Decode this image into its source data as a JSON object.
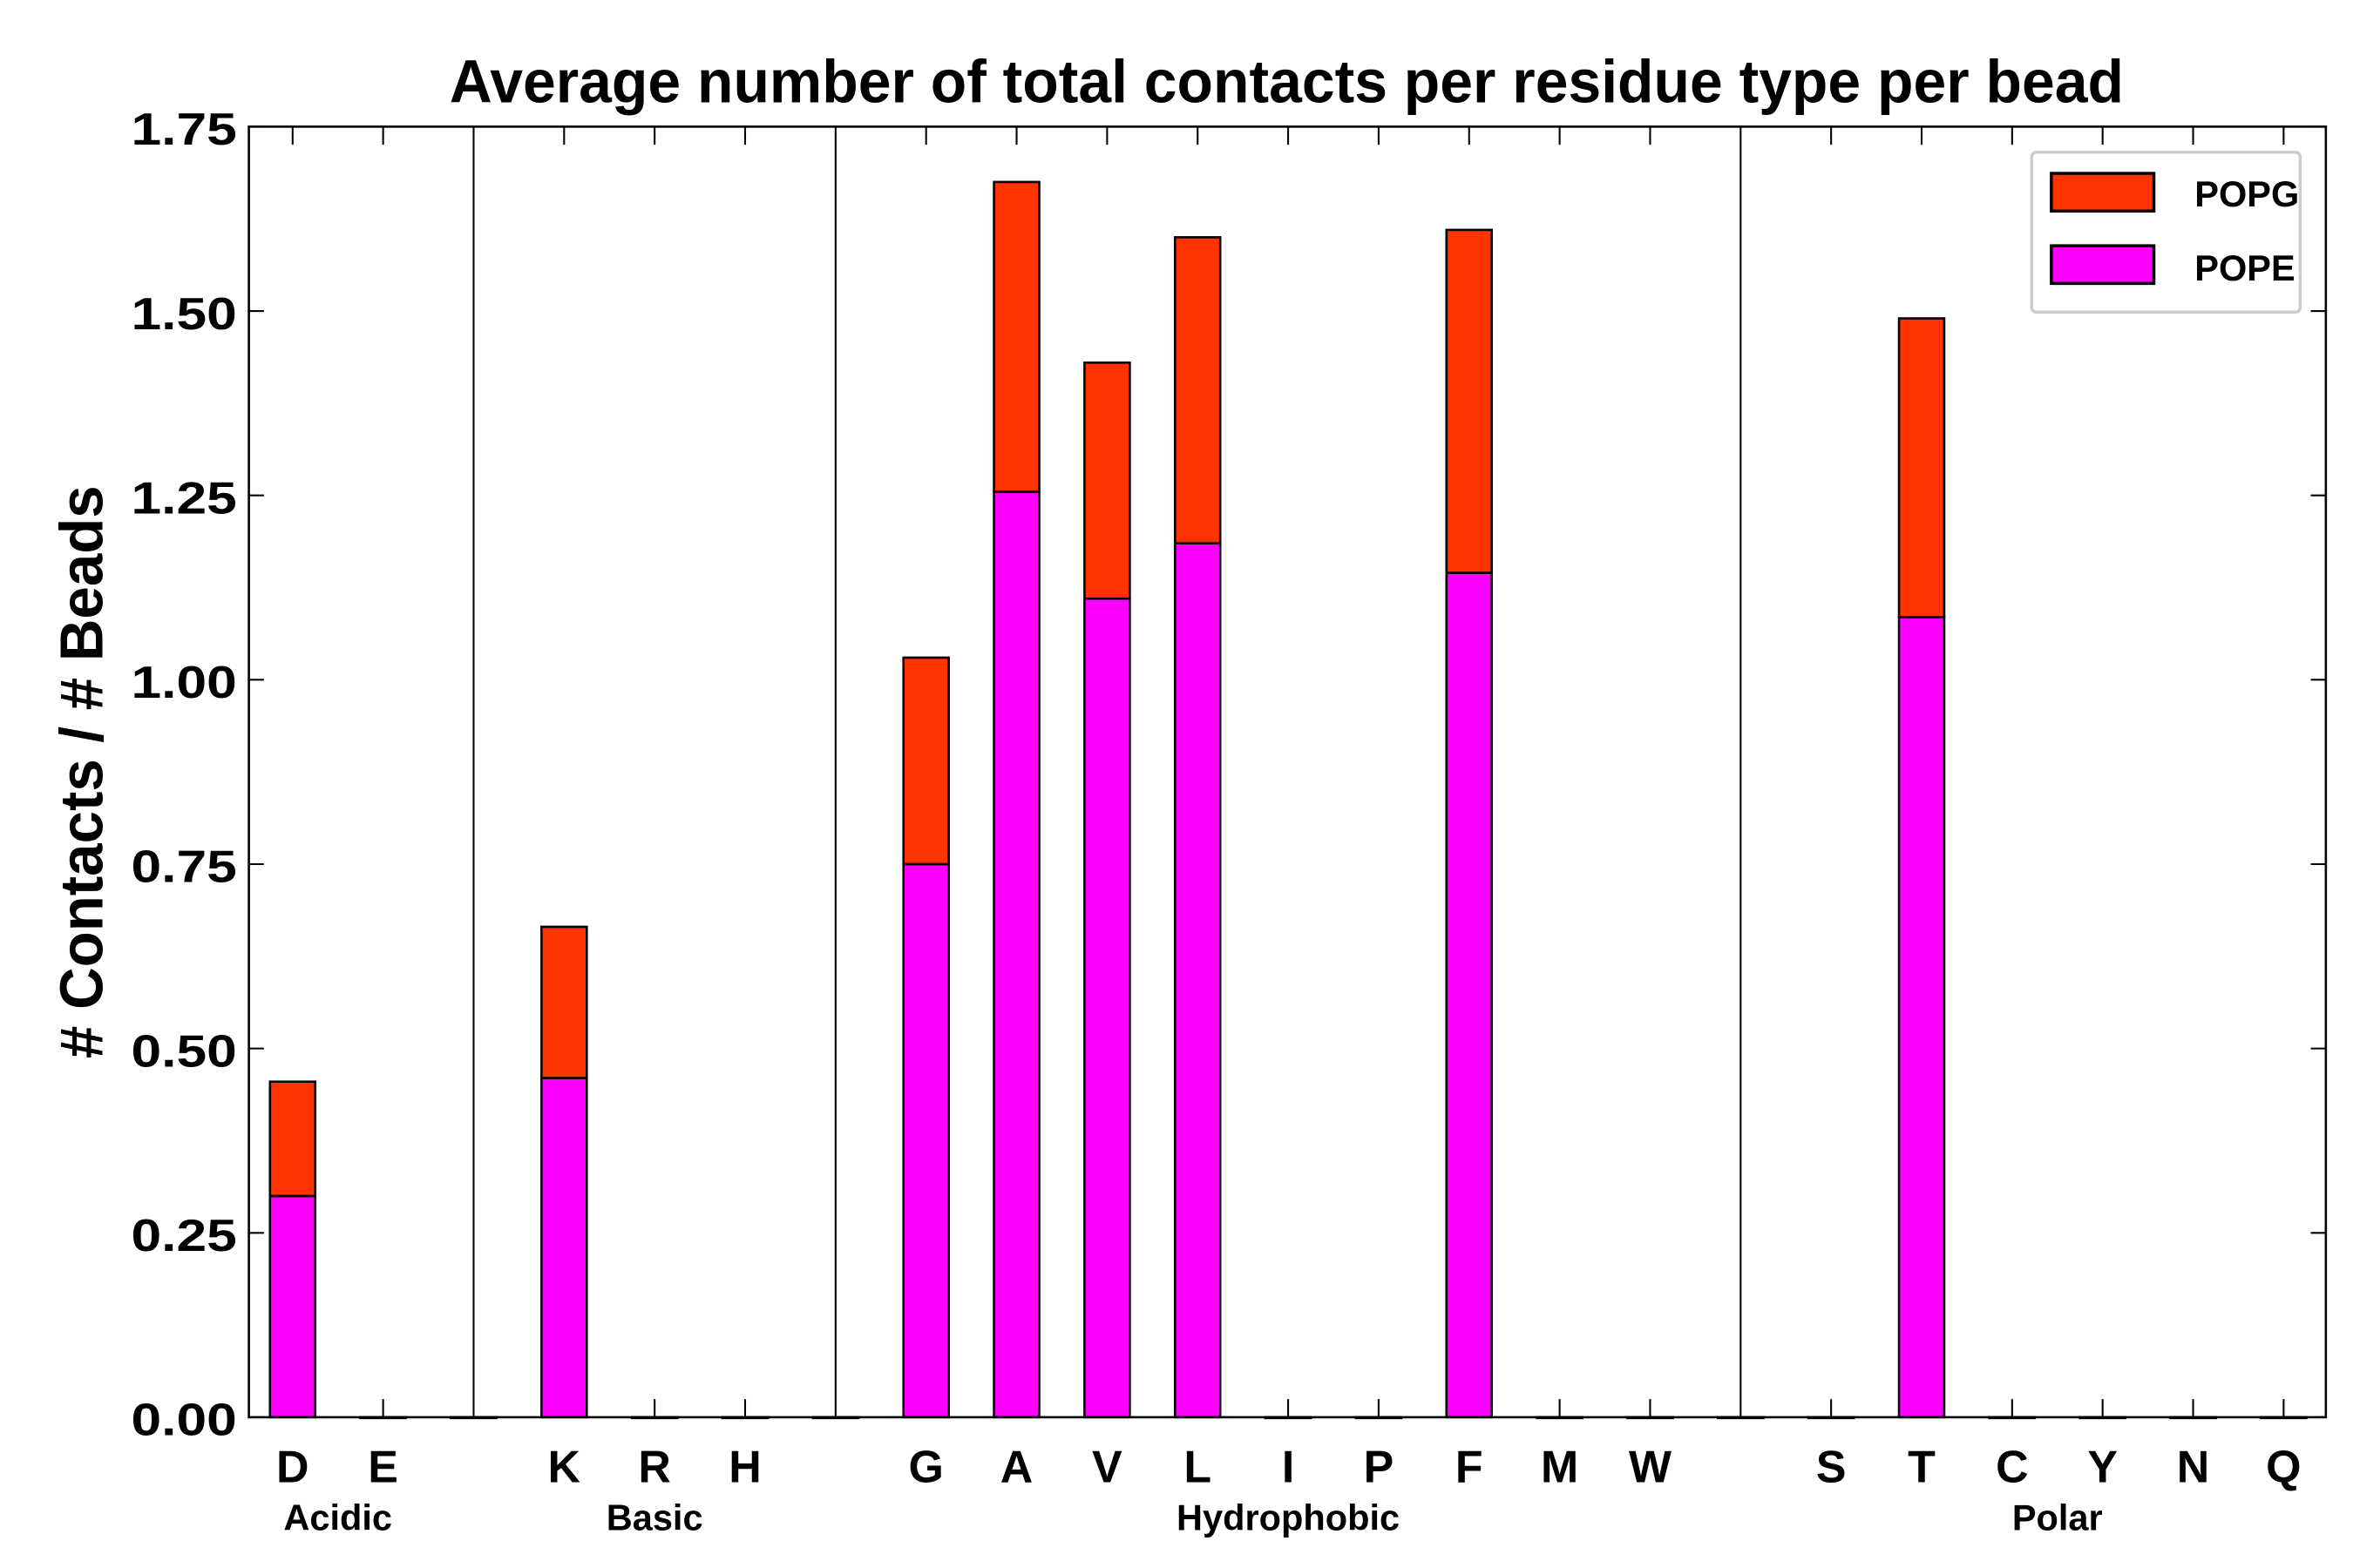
{
  "chart_data": {
    "type": "bar",
    "stacked": true,
    "title": "Average number of total contacts per residue type per bead",
    "xlabel": "",
    "ylabel": "# Contacts / # Beads",
    "ylim": [
      0,
      1.75
    ],
    "yticks": [
      "0.00",
      "0.25",
      "0.50",
      "0.75",
      "1.00",
      "1.25",
      "1.50",
      "1.75"
    ],
    "grid": false,
    "legend_position": "top-right",
    "categories": [
      "D",
      "E",
      "",
      "K",
      "R",
      "H",
      "",
      "G",
      "A",
      "V",
      "L",
      "I",
      "P",
      "F",
      "M",
      "W",
      "",
      "S",
      "T",
      "C",
      "Y",
      "N",
      "Q"
    ],
    "groups": [
      {
        "label": "Acidic",
        "start": 0,
        "end": 1
      },
      {
        "label": "Basic",
        "start": 3,
        "end": 5
      },
      {
        "label": "Hydrophobic",
        "start": 7,
        "end": 15
      },
      {
        "label": "Polar",
        "start": 17,
        "end": 22
      }
    ],
    "separators_after_index": [
      2,
      6,
      16
    ],
    "series": [
      {
        "name": "POPE",
        "color": "#ff00ff",
        "values": [
          0.3,
          0,
          0,
          0.46,
          0,
          0,
          0,
          0.75,
          1.255,
          1.11,
          1.185,
          0,
          0,
          1.145,
          0,
          0,
          0,
          0,
          1.085,
          0,
          0,
          0,
          0
        ]
      },
      {
        "name": "POPG",
        "color": "#ff3300",
        "values": [
          0.155,
          0,
          0,
          0.205,
          0,
          0,
          0,
          0.28,
          0.42,
          0.32,
          0.415,
          0,
          0,
          0.465,
          0,
          0,
          0,
          0,
          0.405,
          0,
          0,
          0,
          0
        ]
      }
    ]
  }
}
